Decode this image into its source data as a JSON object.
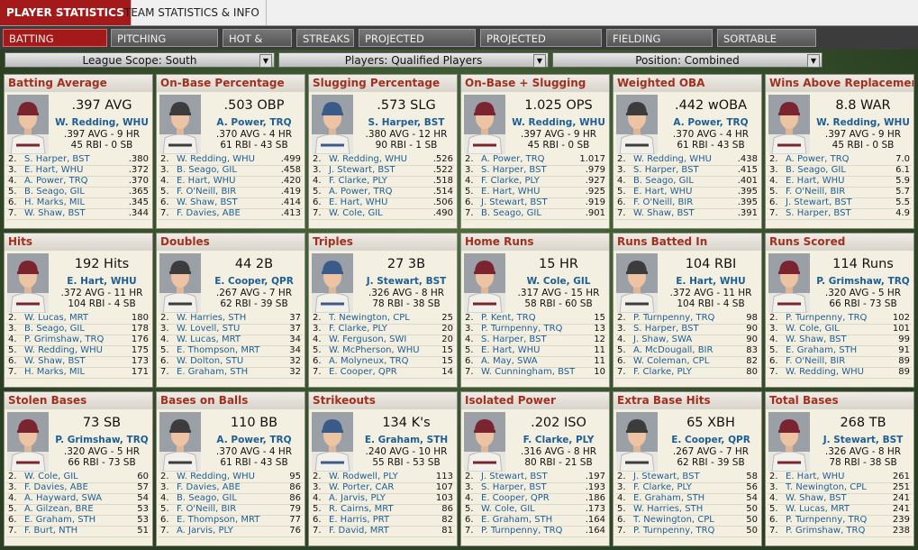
{
  "tabs": [
    "PLAYER STATISTICS",
    "TEAM STATISTICS & INFO"
  ],
  "subtabs": [
    "BATTING LEADERS",
    "PITCHING LEADERS",
    "HOT & COLD",
    "STREAKS",
    "PROJECTED BATTING",
    "PROJECTED PITCHING",
    "FIELDING LEADERS",
    "SORTABLE STATS"
  ],
  "filters": [
    "League Scope: South",
    "Players: Qualified Players",
    "Position: Combined"
  ],
  "panels": [
    {
      "title": "Batting Average",
      "stat": ".397 AVG",
      "leader": "W. Redding, WHU",
      "line1": ".397 AVG - 9 HR",
      "line2": "45 RBI - 0 SB",
      "rows": [
        [
          "2.",
          "S. Harper, BST",
          ".380"
        ],
        [
          "3.",
          "E. Hart, WHU",
          ".372"
        ],
        [
          "4.",
          "A. Power, TRQ",
          ".370"
        ],
        [
          "5.",
          "B. Seago, GIL",
          ".365"
        ],
        [
          "6.",
          "H. Marks, MIL",
          ".345"
        ],
        [
          "7.",
          "W. Shaw, BST",
          ".344"
        ]
      ]
    },
    {
      "title": "On-Base Percentage",
      "stat": ".503 OBP",
      "leader": "A. Power, TRQ",
      "line1": ".370 AVG - 4 HR",
      "line2": "61 RBI - 43 SB",
      "rows": [
        [
          "2.",
          "W. Redding, WHU",
          ".499"
        ],
        [
          "3.",
          "B. Seago, GIL",
          ".458"
        ],
        [
          "4.",
          "E. Hart, WHU",
          ".420"
        ],
        [
          "5.",
          "F. O'Neill, BIR",
          ".419"
        ],
        [
          "6.",
          "W. Shaw, BST",
          ".414"
        ],
        [
          "7.",
          "F. Davies, ABE",
          ".413"
        ]
      ]
    },
    {
      "title": "Slugging Percentage",
      "stat": ".573 SLG",
      "leader": "S. Harper, BST",
      "line1": ".380 AVG - 12 HR",
      "line2": "90 RBI - 1 SB",
      "rows": [
        [
          "2.",
          "W. Redding, WHU",
          ".526"
        ],
        [
          "3.",
          "J. Stewart, BST",
          ".522"
        ],
        [
          "4.",
          "F. Clarke, PLY",
          ".518"
        ],
        [
          "5.",
          "A. Power, TRQ",
          ".514"
        ],
        [
          "6.",
          "E. Hart, WHU",
          ".506"
        ],
        [
          "7.",
          "W. Cole, GIL",
          ".490"
        ]
      ]
    },
    {
      "title": "On-Base + Slugging",
      "stat": "1.025 OPS",
      "leader": "W. Redding, WHU",
      "line1": ".397 AVG - 9 HR",
      "line2": "45 RBI - 0 SB",
      "rows": [
        [
          "2.",
          "A. Power, TRQ",
          "1.017"
        ],
        [
          "3.",
          "S. Harper, BST",
          ".979"
        ],
        [
          "4.",
          "F. Clarke, PLY",
          ".927"
        ],
        [
          "5.",
          "E. Hart, WHU",
          ".925"
        ],
        [
          "6.",
          "J. Stewart, BST",
          ".919"
        ],
        [
          "7.",
          "B. Seago, GIL",
          ".901"
        ]
      ]
    },
    {
      "title": "Weighted OBA",
      "stat": ".442 wOBA",
      "leader": "A. Power, TRQ",
      "line1": ".370 AVG - 4 HR",
      "line2": "61 RBI - 43 SB",
      "rows": [
        [
          "2.",
          "W. Redding, WHU",
          ".438"
        ],
        [
          "3.",
          "S. Harper, BST",
          ".415"
        ],
        [
          "4.",
          "B. Seago, GIL",
          ".401"
        ],
        [
          "5.",
          "E. Hart, WHU",
          ".395"
        ],
        [
          "6.",
          "F. O'Neill, BIR",
          ".395"
        ],
        [
          "7.",
          "W. Shaw, BST",
          ".391"
        ]
      ]
    },
    {
      "title": "Wins Above Replacement",
      "stat": "8.8 WAR",
      "leader": "W. Redding, WHU",
      "line1": ".397 AVG - 9 HR",
      "line2": "45 RBI - 0 SB",
      "rows": [
        [
          "2.",
          "A. Power, TRQ",
          "7.0"
        ],
        [
          "3.",
          "B. Seago, GIL",
          "6.1"
        ],
        [
          "4.",
          "E. Hart, WHU",
          "5.9"
        ],
        [
          "5.",
          "F. O'Neill, BIR",
          "5.7"
        ],
        [
          "6.",
          "J. Stewart, BST",
          "5.5"
        ],
        [
          "7.",
          "S. Harper, BST",
          "4.9"
        ]
      ]
    },
    {
      "title": "Hits",
      "stat": "192 Hits",
      "leader": "E. Hart, WHU",
      "line1": ".372 AVG - 11 HR",
      "line2": "104 RBI - 4 SB",
      "rows": [
        [
          "2.",
          "W. Lucas, MRT",
          "180"
        ],
        [
          "3.",
          "B. Seago, GIL",
          "178"
        ],
        [
          "4.",
          "P. Grimshaw, TRQ",
          "176"
        ],
        [
          "5.",
          "W. Redding, WHU",
          "175"
        ],
        [
          "6.",
          "W. Shaw, BST",
          "173"
        ],
        [
          "7.",
          "H. Marks, MIL",
          "171"
        ]
      ]
    },
    {
      "title": "Doubles",
      "stat": "44 2B",
      "leader": "E. Cooper, QPR",
      "line1": ".267 AVG - 7 HR",
      "line2": "62 RBI - 39 SB",
      "rows": [
        [
          "2.",
          "W. Harries, STH",
          "37"
        ],
        [
          "3.",
          "W. Lovell, STU",
          "37"
        ],
        [
          "4.",
          "W. Lucas, MRT",
          "34"
        ],
        [
          "5.",
          "E. Thompson, MRT",
          "34"
        ],
        [
          "6.",
          "W. Dolton, STU",
          "32"
        ],
        [
          "7.",
          "E. Graham, STH",
          "32"
        ]
      ]
    },
    {
      "title": "Triples",
      "stat": "27 3B",
      "leader": "J. Stewart, BST",
      "line1": ".326 AVG - 8 HR",
      "line2": "78 RBI - 38 SB",
      "rows": [
        [
          "2.",
          "T. Newington, CPL",
          "25"
        ],
        [
          "3.",
          "F. Clarke, PLY",
          "20"
        ],
        [
          "4.",
          "W. Ferguson, SWI",
          "20"
        ],
        [
          "5.",
          "W. McPherson, WHU",
          "15"
        ],
        [
          "6.",
          "A. Molyneux, TRQ",
          "15"
        ],
        [
          "7.",
          "E. Cooper, QPR",
          "14"
        ]
      ]
    },
    {
      "title": "Home Runs",
      "stat": "15 HR",
      "leader": "W. Cole, GIL",
      "line1": ".317 AVG - 15 HR",
      "line2": "58 RBI - 60 SB",
      "rows": [
        [
          "2.",
          "P. Kent, TRQ",
          "15"
        ],
        [
          "3.",
          "P. Turnpenny, TRQ",
          "13"
        ],
        [
          "4.",
          "S. Harper, BST",
          "12"
        ],
        [
          "5.",
          "E. Hart, WHU",
          "11"
        ],
        [
          "6.",
          "A. May, SWA",
          "11"
        ],
        [
          "7.",
          "W. Cunningham, BST",
          "10"
        ]
      ]
    },
    {
      "title": "Runs Batted In",
      "stat": "104 RBI",
      "leader": "E. Hart, WHU",
      "line1": ".372 AVG - 11 HR",
      "line2": "104 RBI - 4 SB",
      "rows": [
        [
          "2.",
          "P. Turnpenny, TRQ",
          "98"
        ],
        [
          "3.",
          "S. Harper, BST",
          "90"
        ],
        [
          "4.",
          "J. Shaw, SWA",
          "90"
        ],
        [
          "5.",
          "A. McDougall, BIR",
          "83"
        ],
        [
          "6.",
          "W. Coleman, CPL",
          "82"
        ],
        [
          "7.",
          "F. Clarke, PLY",
          "80"
        ]
      ]
    },
    {
      "title": "Runs Scored",
      "stat": "114 Runs",
      "leader": "P. Grimshaw, TRQ",
      "line1": ".320 AVG - 5 HR",
      "line2": "66 RBI - 73 SB",
      "rows": [
        [
          "2.",
          "P. Turnpenny, TRQ",
          "102"
        ],
        [
          "3.",
          "W. Cole, GIL",
          "101"
        ],
        [
          "4.",
          "W. Shaw, BST",
          "99"
        ],
        [
          "5.",
          "E. Graham, STH",
          "91"
        ],
        [
          "6.",
          "F. O'Neill, BIR",
          "89"
        ],
        [
          "7.",
          "W. Redding, WHU",
          "89"
        ]
      ]
    },
    {
      "title": "Stolen Bases",
      "stat": "73 SB",
      "leader": "P. Grimshaw, TRQ",
      "line1": ".320 AVG - 5 HR",
      "line2": "66 RBI - 73 SB",
      "rows": [
        [
          "2.",
          "W. Cole, GIL",
          "60"
        ],
        [
          "3.",
          "F. Davies, ABE",
          "57"
        ],
        [
          "4.",
          "A. Hayward, SWA",
          "54"
        ],
        [
          "5.",
          "A. Gilzean, BRE",
          "53"
        ],
        [
          "6.",
          "E. Graham, STH",
          "53"
        ],
        [
          "7.",
          "F. Burt, NTH",
          "51"
        ]
      ]
    },
    {
      "title": "Bases on Balls",
      "stat": "110 BB",
      "leader": "A. Power, TRQ",
      "line1": ".370 AVG - 4 HR",
      "line2": "61 RBI - 43 SB",
      "rows": [
        [
          "2.",
          "W. Redding, WHU",
          "95"
        ],
        [
          "3.",
          "F. Davies, ABE",
          "86"
        ],
        [
          "4.",
          "B. Seago, GIL",
          "86"
        ],
        [
          "5.",
          "F. O'Neill, BIR",
          "79"
        ],
        [
          "6.",
          "E. Thompson, MRT",
          "77"
        ],
        [
          "7.",
          "A. Jarvis, PLY",
          "76"
        ]
      ]
    },
    {
      "title": "Strikeouts",
      "stat": "134 K's",
      "leader": "E. Graham, STH",
      "line1": ".240 AVG - 10 HR",
      "line2": "55 RBI - 53 SB",
      "rows": [
        [
          "2.",
          "W. Rodwell, PLY",
          "113"
        ],
        [
          "3.",
          "W. Porter, CAR",
          "107"
        ],
        [
          "4.",
          "A. Jarvis, PLY",
          "103"
        ],
        [
          "5.",
          "R. Cairns, MRT",
          "86"
        ],
        [
          "6.",
          "E. Harris, PRT",
          "82"
        ],
        [
          "7.",
          "F. David, MRT",
          "81"
        ]
      ]
    },
    {
      "title": "Isolated Power",
      "stat": ".202 ISO",
      "leader": "F. Clarke, PLY",
      "line1": ".316 AVG - 8 HR",
      "line2": "80 RBI - 21 SB",
      "rows": [
        [
          "2.",
          "J. Stewart, BST",
          ".197"
        ],
        [
          "3.",
          "S. Harper, BST",
          ".193"
        ],
        [
          "4.",
          "E. Cooper, QPR",
          ".186"
        ],
        [
          "5.",
          "W. Cole, GIL",
          ".173"
        ],
        [
          "6.",
          "E. Graham, STH",
          ".164"
        ],
        [
          "7.",
          "P. Turnpenny, TRQ",
          ".164"
        ]
      ]
    },
    {
      "title": "Extra Base Hits",
      "stat": "65 XBH",
      "leader": "E. Cooper, QPR",
      "line1": ".267 AVG - 7 HR",
      "line2": "62 RBI - 39 SB",
      "rows": [
        [
          "2.",
          "J. Stewart, BST",
          "58"
        ],
        [
          "3.",
          "F. Clarke, PLY",
          "56"
        ],
        [
          "4.",
          "E. Graham, STH",
          "54"
        ],
        [
          "5.",
          "W. Harries, STH",
          "50"
        ],
        [
          "6.",
          "T. Newington, CPL",
          "50"
        ],
        [
          "7.",
          "P. Turnpenny, TRQ",
          "50"
        ]
      ]
    },
    {
      "title": "Total Bases",
      "stat": "268 TB",
      "leader": "J. Stewart, BST",
      "line1": ".326 AVG - 8 HR",
      "line2": "78 RBI - 38 SB",
      "rows": [
        [
          "2.",
          "E. Hart, WHU",
          "261"
        ],
        [
          "3.",
          "T. Newington, CPL",
          "251"
        ],
        [
          "4.",
          "W. Shaw, BST",
          "241"
        ],
        [
          "5.",
          "W. Lucas, MRT",
          "241"
        ],
        [
          "6.",
          "P. Turnpenny, TRQ",
          "239"
        ],
        [
          "7.",
          "P. Grimshaw, TRQ",
          "238"
        ]
      ]
    }
  ]
}
